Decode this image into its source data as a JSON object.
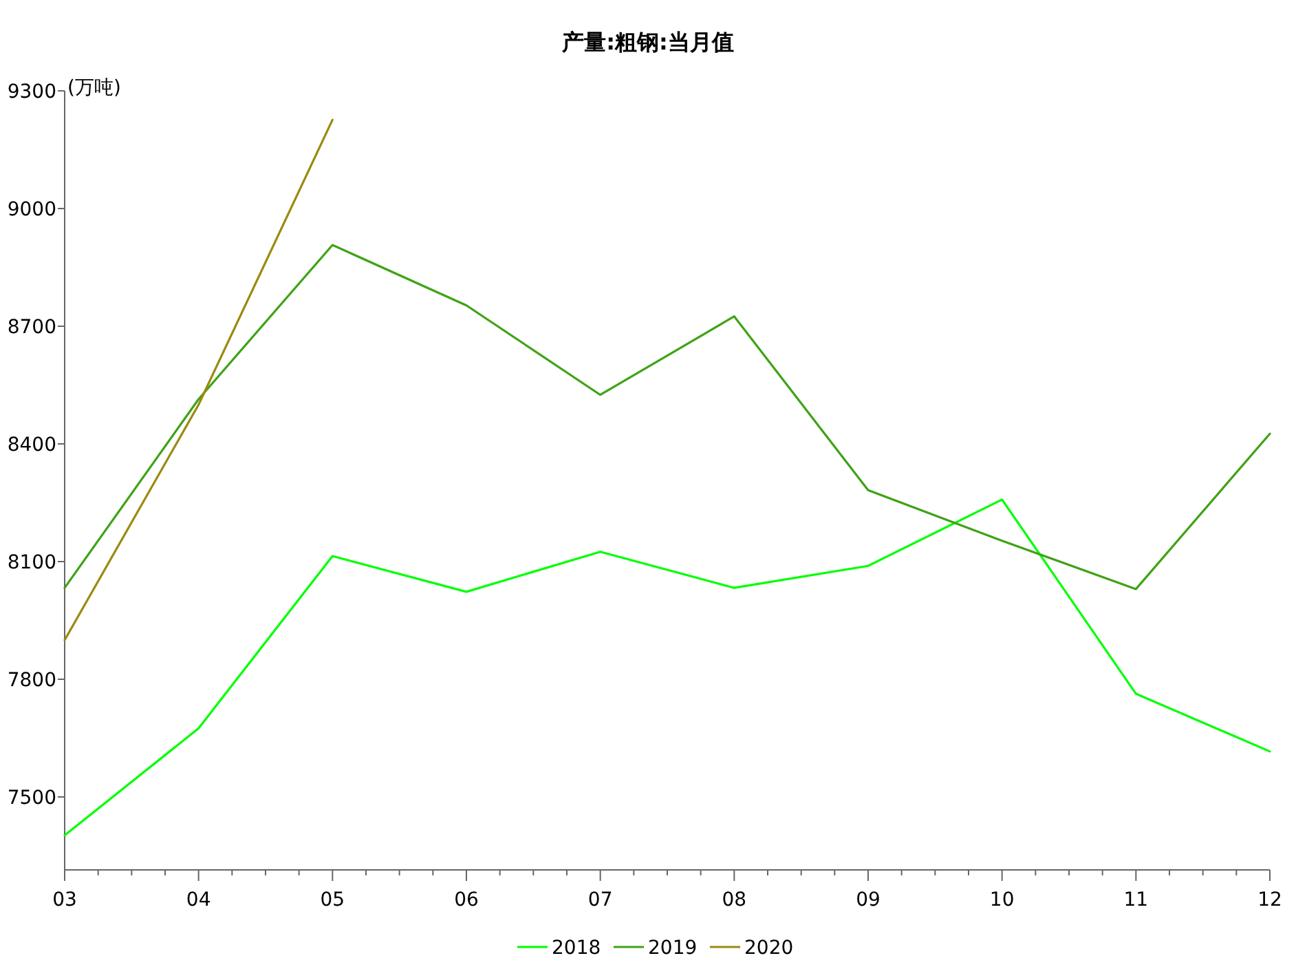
{
  "chart_data": {
    "type": "line",
    "title": "产量:粗钢:当月值",
    "ylabel": "(万吨)",
    "categories": [
      "03",
      "04",
      "05",
      "06",
      "07",
      "08",
      "09",
      "10",
      "11",
      "12"
    ],
    "series": [
      {
        "name": "2018",
        "color": "#00ff00",
        "values": [
          7402,
          7675,
          8114,
          8023,
          8125,
          8033,
          8089,
          8258,
          7763,
          7616
        ]
      },
      {
        "name": "2019",
        "color": "#3fa316",
        "values": [
          8033,
          8514,
          8907,
          8753,
          8525,
          8725,
          8282,
          8153,
          8030,
          8426
        ]
      },
      {
        "name": "2020",
        "color": "#9a8a10",
        "values": [
          7900,
          8500,
          9226,
          null,
          null,
          null,
          null,
          null,
          null,
          null
        ]
      }
    ],
    "ylim": [
      7314,
      9300
    ],
    "yticks": [
      7500,
      7800,
      8100,
      8400,
      8700,
      9000,
      9300
    ],
    "legend": "bottom",
    "grid": false,
    "marker": "none",
    "line_style": "solid"
  }
}
